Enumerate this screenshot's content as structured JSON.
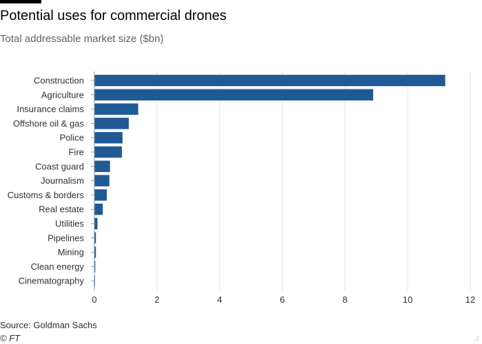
{
  "header": {
    "title": "Potential uses for commercial drones",
    "subtitle": "Total addressable market size ($bn)"
  },
  "footer": {
    "source": "Source: Goldman Sachs",
    "credit": "© FT"
  },
  "colors": {
    "bar": "#1f5a96",
    "grid": "#e6e1db",
    "axis": "#999999",
    "text": "#33302e"
  },
  "chart_data": {
    "type": "bar",
    "orientation": "horizontal",
    "title": "Potential uses for commercial drones",
    "subtitle": "Total addressable market size ($bn)",
    "categories": [
      "Construction",
      "Agriculture",
      "Insurance claims",
      "Offshore oil & gas",
      "Police",
      "Fire",
      "Coast guard",
      "Journalism",
      "Customs & borders",
      "Real estate",
      "Utilities",
      "Pipelines",
      "Mining",
      "Clean energy",
      "Cinematography"
    ],
    "values": [
      11.2,
      8.9,
      1.4,
      1.1,
      0.9,
      0.88,
      0.5,
      0.48,
      0.4,
      0.27,
      0.1,
      0.05,
      0.05,
      0.03,
      0.02
    ],
    "xlim": [
      0,
      12
    ],
    "xticks": [
      0,
      2,
      4,
      6,
      8,
      10,
      12
    ],
    "grid": true,
    "source": "Source: Goldman Sachs"
  }
}
